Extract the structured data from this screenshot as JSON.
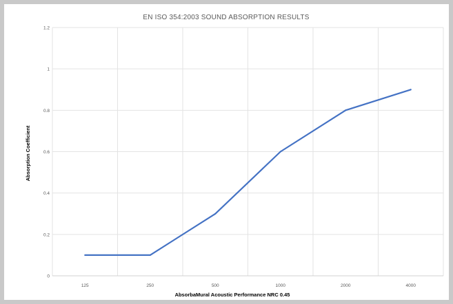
{
  "chart_data": {
    "type": "line",
    "title": "EN ISO 354:2003 SOUND ABSORPTION RESULTS",
    "xlabel": "AbsorbaMural Acoustic Performance NRC 0.45",
    "ylabel": "Absorption Coefficient",
    "categories": [
      "125",
      "250",
      "500",
      "1000",
      "2000",
      "4000"
    ],
    "y_ticks": [
      "0",
      "0.2",
      "0.4",
      "0.6",
      "0.8",
      "1",
      "1.2"
    ],
    "ylim": [
      0,
      1.2
    ],
    "grid": true,
    "legend": "none",
    "series": [
      {
        "values": [
          0.1,
          0.1,
          0.3,
          0.6,
          0.8,
          0.9
        ],
        "color": "#4472c4"
      }
    ]
  }
}
